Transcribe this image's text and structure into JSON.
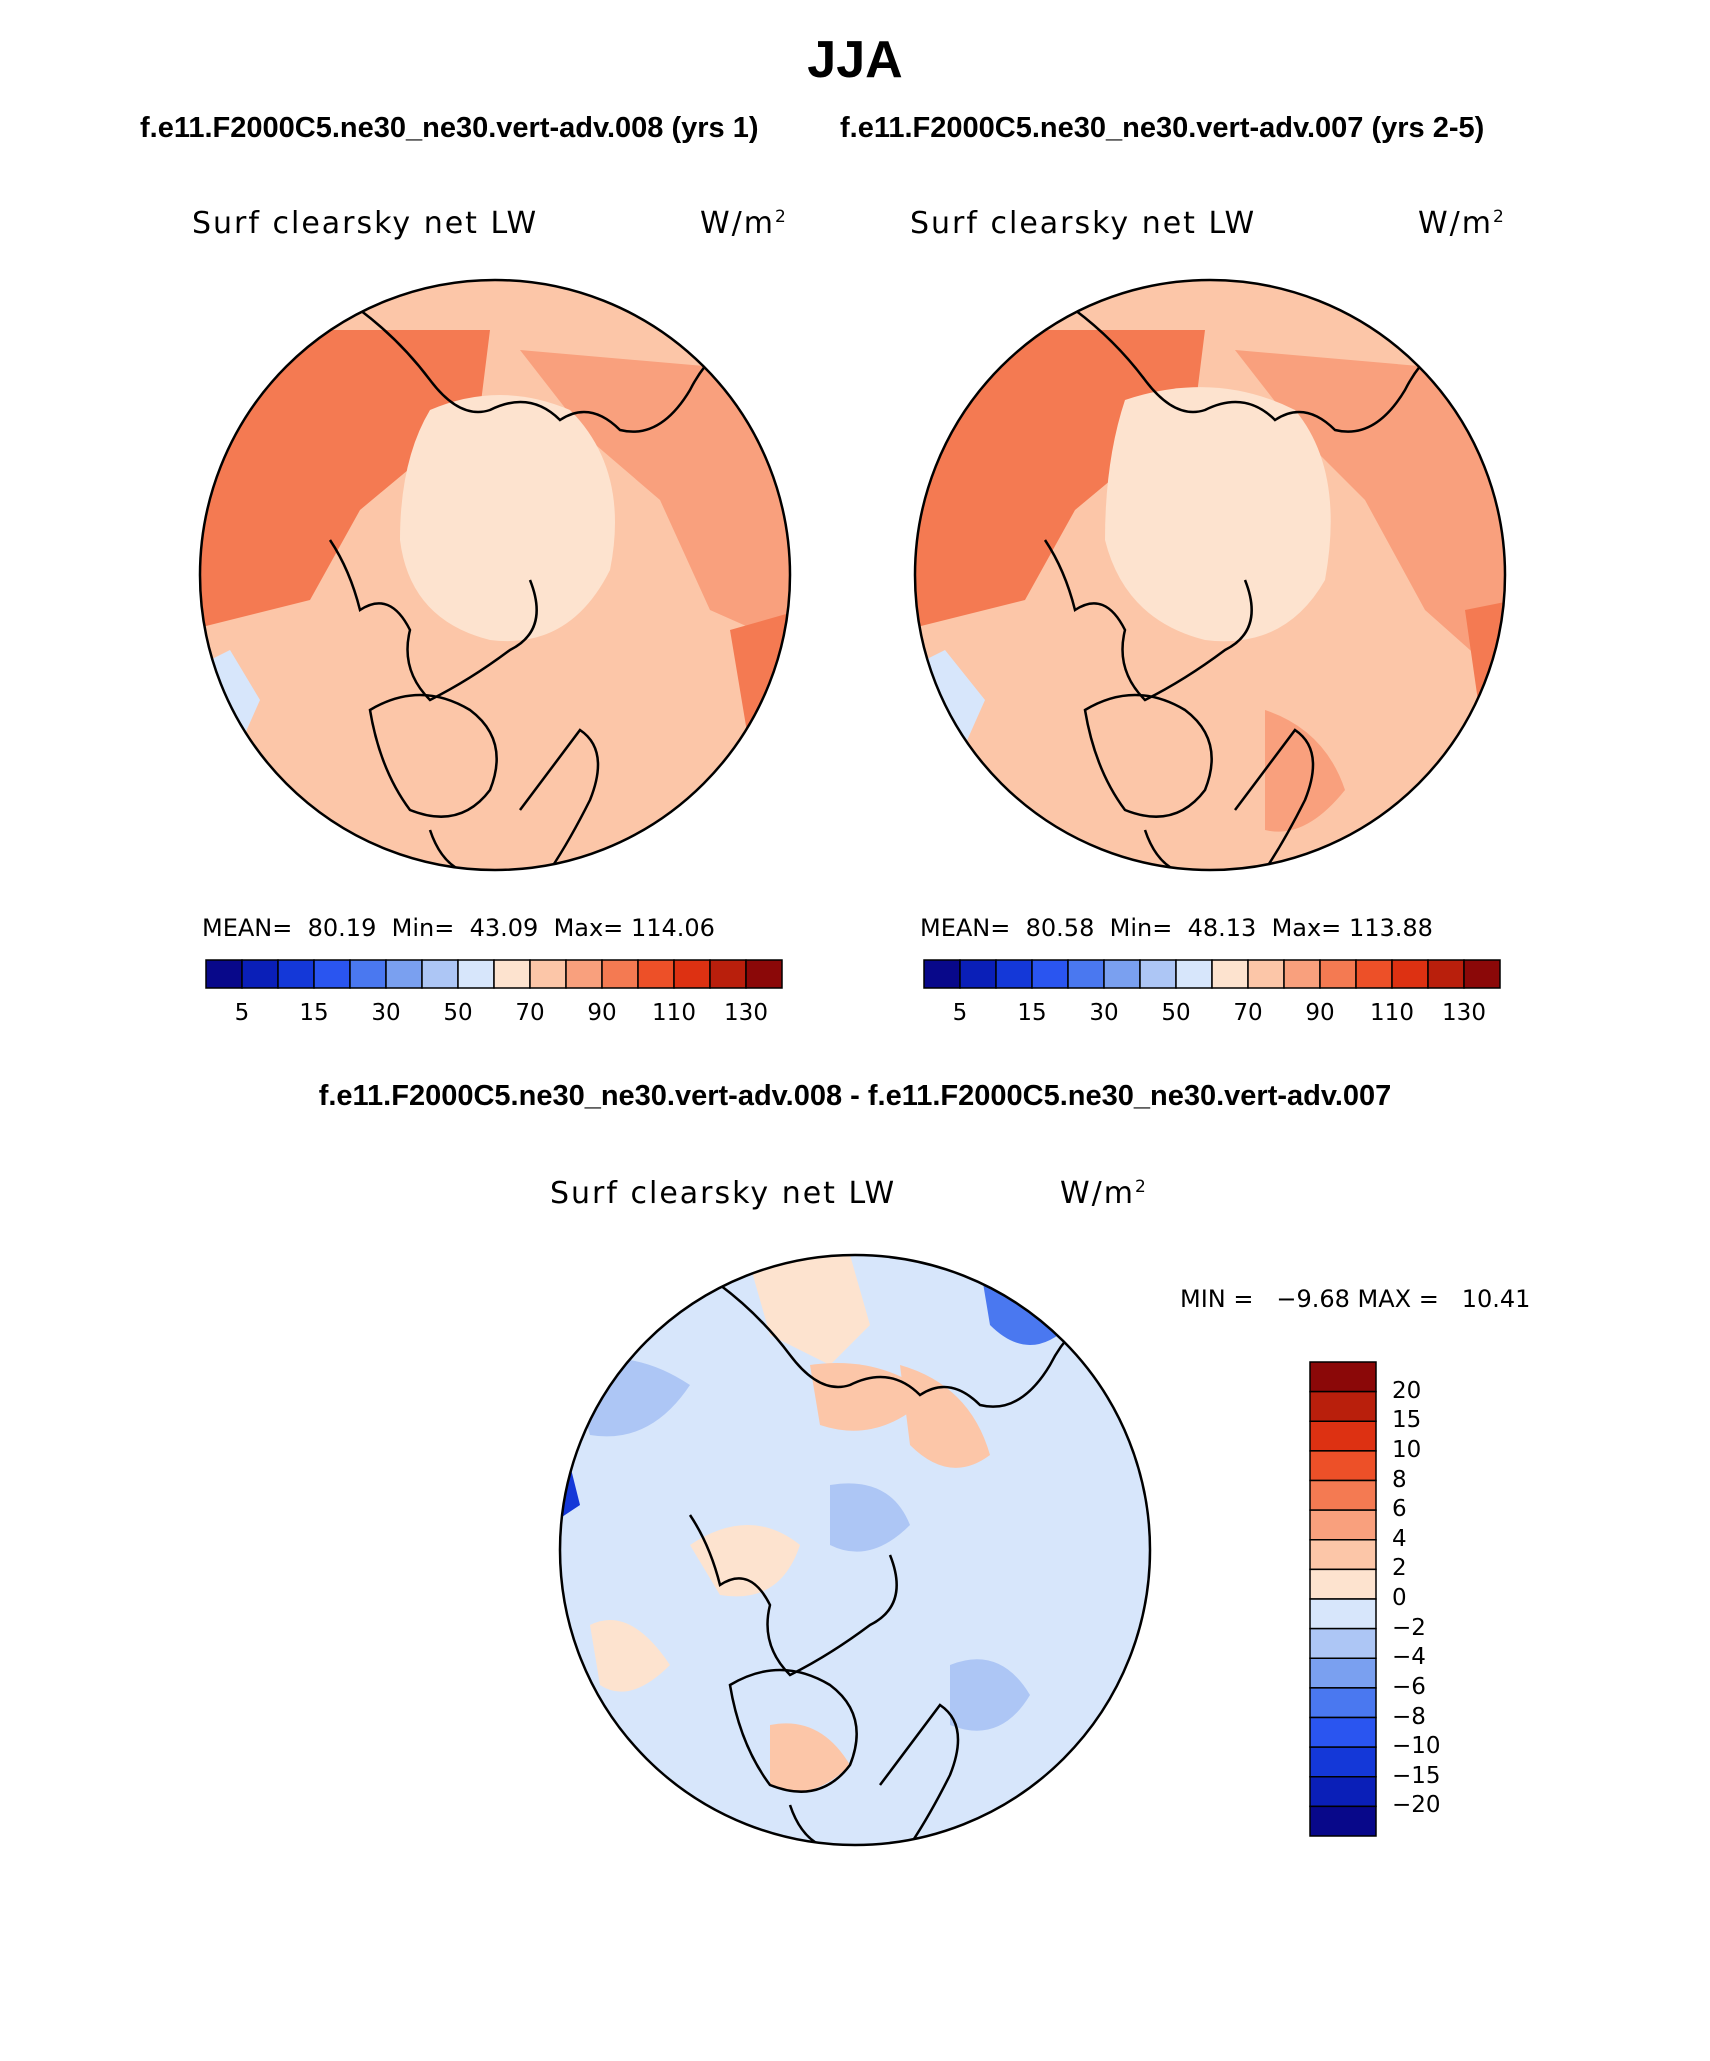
{
  "title": "JJA",
  "case_titles": {
    "left": "f.e11.F2000C5.ne30_ne30.vert-adv.008 (yrs 1)",
    "right": "f.e11.F2000C5.ne30_ne30.vert-adv.007 (yrs 2-5)"
  },
  "panels": [
    {
      "variable": "Surf clearsky net LW",
      "unit_base": "W/m",
      "unit_exp": "2",
      "mean_label": "MEAN=",
      "mean": "80.19",
      "min_label": "Min=",
      "min": "43.09",
      "max_label": "Max=",
      "max": "114.06"
    },
    {
      "variable": "Surf clearsky net LW",
      "unit_base": "W/m",
      "unit_exp": "2",
      "mean_label": "MEAN=",
      "mean": "80.58",
      "min_label": "Min=",
      "min": "48.13",
      "max_label": "Max=",
      "max": "113.88"
    }
  ],
  "colorbar_abs": {
    "colors": [
      "#08088a",
      "#0a1fb8",
      "#1438d8",
      "#2a55f0",
      "#4a78f0",
      "#7aa0f0",
      "#adc6f5",
      "#d7e6fb",
      "#fde3cf",
      "#fcc6a8",
      "#f9a07d",
      "#f47a52",
      "#ed5028",
      "#dd3112",
      "#b91f0c",
      "#8b0808"
    ],
    "labels": [
      "5",
      "15",
      "30",
      "50",
      "70",
      "90",
      "110",
      "130"
    ]
  },
  "diff": {
    "title": "f.e11.F2000C5.ne30_ne30.vert-adv.008 - f.e11.F2000C5.ne30_ne30.vert-adv.007",
    "variable": "Surf clearsky net LW",
    "unit_base": "W/m",
    "unit_exp": "2",
    "stats": "MIN =   −9.68 MAX =   10.41",
    "colorbar": {
      "colors": [
        "#8b0808",
        "#b91f0c",
        "#dd3112",
        "#ed5028",
        "#f47a52",
        "#f9a07d",
        "#fcc6a8",
        "#fde3cf",
        "#d7e6fb",
        "#adc6f5",
        "#7aa0f0",
        "#4a78f0",
        "#2a55f0",
        "#1438d8",
        "#0a1fb8",
        "#08088a"
      ],
      "labels": [
        "20",
        "15",
        "10",
        "8",
        "6",
        "4",
        "2",
        "0",
        "−2",
        "−4",
        "−6",
        "−8",
        "−10",
        "−15",
        "−20"
      ]
    }
  },
  "colors": {
    "ocean_abs_a": "#f9a07d",
    "ocean_abs_b": "#fcc6a8",
    "arctic_abs": "#fde3cf",
    "warm_abs": "#f47a52",
    "diff_neg": "#d7e6fb",
    "diff_pos": "#fde3cf"
  }
}
